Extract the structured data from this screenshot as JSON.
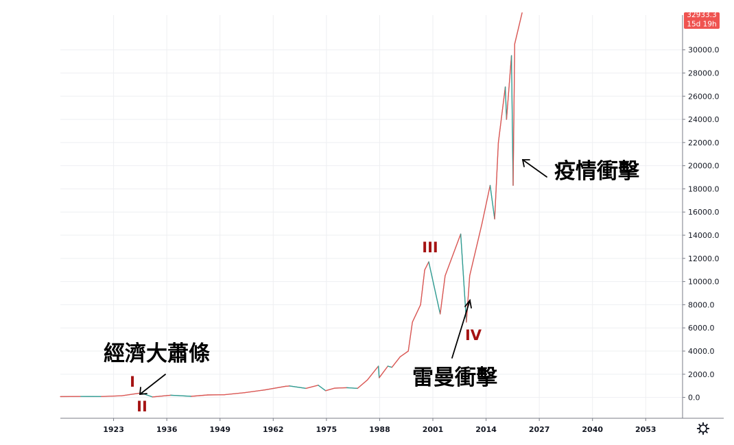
{
  "chart_data": {
    "type": "line",
    "title": "",
    "xlabel": "",
    "ylabel": "",
    "xlim": [
      1910,
      2062
    ],
    "ylim": [
      -1800,
      33000
    ],
    "x_ticks": [
      "1923",
      "1936",
      "1949",
      "1962",
      "1975",
      "1988",
      "2001",
      "2014",
      "2027",
      "2040",
      "2053"
    ],
    "y_ticks": [
      "0.0",
      "2000.0",
      "4000.0",
      "6000.0",
      "8000.0",
      "10000.0",
      "12000.0",
      "14000.0",
      "16000.0",
      "18000.0",
      "20000.0",
      "22000.0",
      "24000.0",
      "26000.0",
      "28000.0",
      "30000.0"
    ],
    "grid": true,
    "colors": {
      "up": "#ef5350",
      "down": "#26a69a",
      "wick": "#6d6d6d"
    },
    "series": [
      {
        "x": [
          1910,
          1915,
          1920,
          1925,
          1929.7,
          1932.5,
          1937,
          1942,
          1946,
          1950,
          1955,
          1960,
          1965,
          1966,
          1970,
          1973,
          1974.8,
          1977,
          1980,
          1982.6,
          1985,
          1987.7,
          1987.9,
          1990,
          1991,
          1993,
          1995,
          1996,
          1998,
          1999,
          2000,
          2002.8,
          2004,
          2007.8,
          2009.2,
          2010,
          2013,
          2015,
          2016.1,
          2017,
          2018.7,
          2019,
          2020.2,
          2020.6,
          2021,
          2022.8
        ],
        "values": [
          70,
          80,
          75,
          140,
          381,
          41,
          190,
          95,
          210,
          230,
          410,
          650,
          960,
          990,
          780,
          1050,
          580,
          800,
          840,
          780,
          1500,
          2700,
          1700,
          2700,
          2600,
          3500,
          4000,
          6500,
          8000,
          11000,
          11700,
          7200,
          10500,
          14100,
          6500,
          10500,
          15000,
          18300,
          15400,
          22000,
          26800,
          24000,
          29500,
          18300,
          30500,
          33200
        ]
      }
    ],
    "annotations": [
      {
        "text": "I",
        "x": 1929.7
      },
      {
        "text": "II",
        "x": 1932.5
      },
      {
        "text": "III",
        "x": 2000
      },
      {
        "text": "IV",
        "x": 2009.2
      },
      {
        "text": "經濟大蕭條",
        "x": 1931
      },
      {
        "text": "雷曼衝擊",
        "x": 2009
      },
      {
        "text": "疫情衝擊",
        "x": 2020.3
      }
    ],
    "last_price": {
      "value": "32933.3",
      "countdown": "15d 19h"
    }
  }
}
